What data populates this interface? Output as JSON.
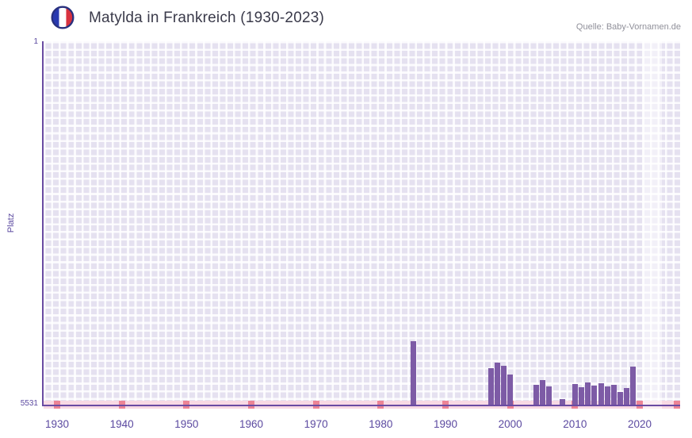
{
  "header": {
    "title": "Matylda in Frankreich (1930-2023)",
    "source": "Quelle: Baby-Vornamen.de"
  },
  "chart_data": {
    "type": "bar",
    "title": "Matylda in Frankreich (1930-2023)",
    "xlabel": "",
    "ylabel": "Platz",
    "y_axis": {
      "top_label": "1",
      "bottom_label": "5531",
      "min": 1,
      "max": 5531,
      "inverted": true
    },
    "x_ticks": [
      1930,
      1940,
      1950,
      1960,
      1970,
      1980,
      1990,
      2000,
      2010,
      2020
    ],
    "x_range": [
      1928,
      2026
    ],
    "grid": true,
    "legend_position": "none",
    "bars": [
      {
        "year": 1985,
        "rank": 4560
      },
      {
        "year": 1997,
        "rank": 4980
      },
      {
        "year": 1998,
        "rank": 4895
      },
      {
        "year": 1999,
        "rank": 4940
      },
      {
        "year": 2000,
        "rank": 5070
      },
      {
        "year": 2004,
        "rank": 5230
      },
      {
        "year": 2005,
        "rank": 5160
      },
      {
        "year": 2006,
        "rank": 5250
      },
      {
        "year": 2008,
        "rank": 5450
      },
      {
        "year": 2010,
        "rank": 5220
      },
      {
        "year": 2011,
        "rank": 5270
      },
      {
        "year": 2012,
        "rank": 5190
      },
      {
        "year": 2013,
        "rank": 5240
      },
      {
        "year": 2014,
        "rank": 5210
      },
      {
        "year": 2015,
        "rank": 5250
      },
      {
        "year": 2016,
        "rank": 5230
      },
      {
        "year": 2017,
        "rank": 5340
      },
      {
        "year": 2018,
        "rank": 5280
      },
      {
        "year": 2019,
        "rank": 4950
      }
    ],
    "bottom_strip": {
      "marks_at_ticks": true,
      "right_edge_mark": true
    },
    "highlight_band": {
      "years": [
        2021,
        2023
      ]
    },
    "colors": {
      "bar": "#7d5ba6",
      "strip": "#f8d9e4",
      "mark": "#ec8496",
      "axis": "#6a4ba2",
      "ticks": "#5b49a0",
      "title": "#3a3a4a",
      "source": "#90909a",
      "plot_bg": "#e5e1f0",
      "flag_blue": "#2939b0",
      "flag_red": "#d8323f",
      "flag_outline": "#28307e"
    }
  }
}
